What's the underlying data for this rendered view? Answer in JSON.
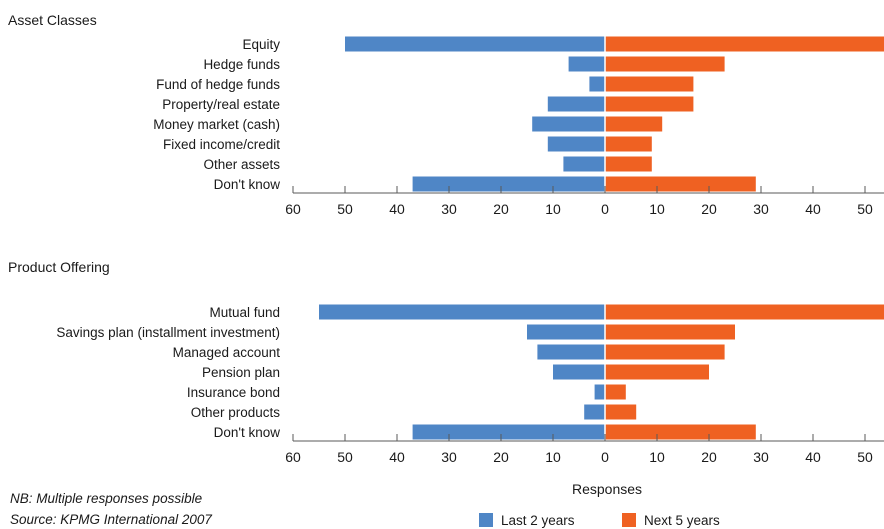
{
  "chart_data": [
    {
      "type": "bar",
      "orientation": "horizontal-diverging",
      "title": "Asset Classes",
      "categories": [
        "Equity",
        "Hedge funds",
        "Fund of hedge funds",
        "Property/real estate",
        "Money market (cash)",
        "Fixed income/credit",
        "Other assets",
        "Don't know"
      ],
      "series": [
        {
          "name": "Last 2 years",
          "values": [
            50,
            7,
            3,
            11,
            14,
            11,
            8,
            37
          ]
        },
        {
          "name": "Next 5 years",
          "values": [
            55,
            23,
            17,
            17,
            11,
            9,
            9,
            29
          ]
        }
      ],
      "xticks": [
        "60",
        "50",
        "40",
        "30",
        "20",
        "10",
        "0",
        "10",
        "20",
        "30",
        "40",
        "50"
      ],
      "xlim": [
        -60,
        53
      ]
    },
    {
      "type": "bar",
      "orientation": "horizontal-diverging",
      "title": "Product Offering",
      "categories": [
        "Mutual fund",
        "Savings plan (installment investment)",
        "Managed account",
        "Pension plan",
        "Insurance bond",
        "Other products",
        "Don't know"
      ],
      "series": [
        {
          "name": "Last 2 years",
          "values": [
            55,
            15,
            13,
            10,
            2,
            4,
            37
          ]
        },
        {
          "name": "Next 5 years",
          "values": [
            55,
            25,
            23,
            20,
            4,
            6,
            29
          ]
        }
      ],
      "xticks": [
        "60",
        "50",
        "40",
        "30",
        "20",
        "10",
        "0",
        "10",
        "20",
        "30",
        "40",
        "50"
      ],
      "xlim": [
        -60,
        53
      ],
      "xlabel": "Responses"
    }
  ],
  "colors": {
    "last": "#4f86c6",
    "next": "#ef6122",
    "axis": "#5a5a5a"
  },
  "legend": {
    "last_label": "Last 2 years",
    "next_label": "Next 5 years"
  },
  "notes": {
    "nb": "NB: Multiple responses possible",
    "source": "Source: KPMG International 2007"
  }
}
